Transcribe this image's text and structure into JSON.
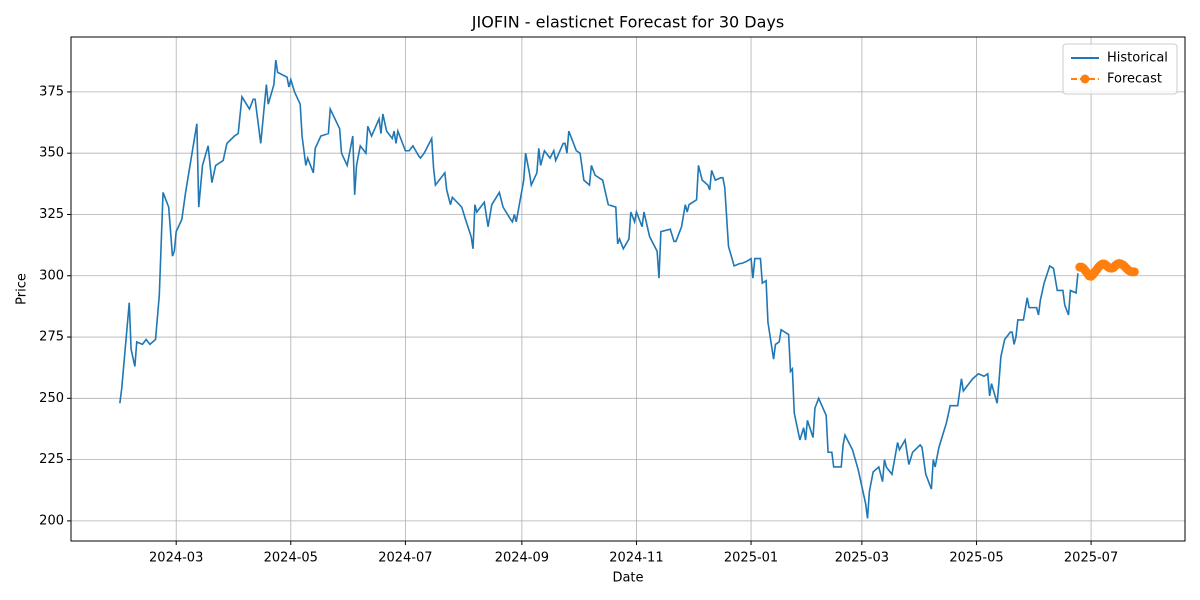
{
  "chart_data": {
    "type": "line",
    "title": "JIOFIN - elasticnet Forecast for 30 Days",
    "x_label": "Date",
    "y_label": "Price",
    "grid": true,
    "legend": "upper right",
    "xlim": [
      "2024-01-05",
      "2025-08-20"
    ],
    "xticks": [
      {
        "value": "2024-03-01",
        "label": "2024-03"
      },
      {
        "value": "2024-05-01",
        "label": "2024-05"
      },
      {
        "value": "2024-07-01",
        "label": "2024-07"
      },
      {
        "value": "2024-09-01",
        "label": "2024-09"
      },
      {
        "value": "2024-11-01",
        "label": "2024-11"
      },
      {
        "value": "2025-01-01",
        "label": "2025-01"
      },
      {
        "value": "2025-03-01",
        "label": "2025-03"
      },
      {
        "value": "2025-05-01",
        "label": "2025-05"
      },
      {
        "value": "2025-07-01",
        "label": "2025-07"
      }
    ],
    "ylim": [
      191.8,
      397.4
    ],
    "yticks": [
      200,
      225,
      250,
      275,
      300,
      325,
      350,
      375
    ],
    "series": [
      {
        "name": "Historical",
        "color": "#1f77b4",
        "style": "solid",
        "x": [
          "2024-01-31",
          "2024-02-01",
          "2024-02-05",
          "2024-02-06",
          "2024-02-08",
          "2024-02-09",
          "2024-02-12",
          "2024-02-14",
          "2024-02-16",
          "2024-02-19",
          "2024-02-21",
          "2024-02-23",
          "2024-02-26",
          "2024-02-28",
          "2024-02-29",
          "2024-03-01",
          "2024-03-04",
          "2024-03-06",
          "2024-03-12",
          "2024-03-13",
          "2024-03-15",
          "2024-03-18",
          "2024-03-20",
          "2024-03-22",
          "2024-03-26",
          "2024-03-28",
          "2024-04-01",
          "2024-04-03",
          "2024-04-05",
          "2024-04-09",
          "2024-04-11",
          "2024-04-12",
          "2024-04-15",
          "2024-04-18",
          "2024-04-19",
          "2024-04-22",
          "2024-04-23",
          "2024-04-24",
          "2024-04-29",
          "2024-04-30",
          "2024-05-01",
          "2024-05-03",
          "2024-05-06",
          "2024-05-07",
          "2024-05-09",
          "2024-05-10",
          "2024-05-13",
          "2024-05-14",
          "2024-05-17",
          "2024-05-21",
          "2024-05-22",
          "2024-05-27",
          "2024-05-28",
          "2024-05-31",
          "2024-06-03",
          "2024-06-04",
          "2024-06-05",
          "2024-06-07",
          "2024-06-10",
          "2024-06-11",
          "2024-06-13",
          "2024-06-17",
          "2024-06-18",
          "2024-06-19",
          "2024-06-21",
          "2024-06-24",
          "2024-06-25",
          "2024-06-26",
          "2024-06-27",
          "2024-07-01",
          "2024-07-03",
          "2024-07-05",
          "2024-07-08",
          "2024-07-09",
          "2024-07-11",
          "2024-07-15",
          "2024-07-16",
          "2024-07-17",
          "2024-07-19",
          "2024-07-22",
          "2024-07-23",
          "2024-07-25",
          "2024-07-26",
          "2024-07-31",
          "2024-08-02",
          "2024-08-05",
          "2024-08-06",
          "2024-08-07",
          "2024-08-08",
          "2024-08-12",
          "2024-08-14",
          "2024-08-16",
          "2024-08-20",
          "2024-08-22",
          "2024-08-26",
          "2024-08-27",
          "2024-08-28",
          "2024-08-29",
          "2024-09-02",
          "2024-09-03",
          "2024-09-05",
          "2024-09-06",
          "2024-09-09",
          "2024-09-10",
          "2024-09-11",
          "2024-09-13",
          "2024-09-16",
          "2024-09-18",
          "2024-09-19",
          "2024-09-23",
          "2024-09-24",
          "2024-09-25",
          "2024-09-26",
          "2024-09-30",
          "2024-10-02",
          "2024-10-04",
          "2024-10-07",
          "2024-10-08",
          "2024-10-10",
          "2024-10-14",
          "2024-10-17",
          "2024-10-21",
          "2024-10-22",
          "2024-10-23",
          "2024-10-25",
          "2024-10-28",
          "2024-10-29",
          "2024-10-31",
          "2024-11-01",
          "2024-11-04",
          "2024-11-05",
          "2024-11-08",
          "2024-11-12",
          "2024-11-13",
          "2024-11-14",
          "2024-11-19",
          "2024-11-21",
          "2024-11-22",
          "2024-11-25",
          "2024-11-27",
          "2024-11-28",
          "2024-11-29",
          "2024-12-03",
          "2024-12-04",
          "2024-12-06",
          "2024-12-09",
          "2024-12-10",
          "2024-12-11",
          "2024-12-13",
          "2024-12-16",
          "2024-12-17",
          "2024-12-18",
          "2024-12-20",
          "2024-12-23",
          "2024-12-26",
          "2024-12-27",
          "2024-12-30",
          "2025-01-01",
          "2025-01-02",
          "2025-01-03",
          "2025-01-06",
          "2025-01-07",
          "2025-01-09",
          "2025-01-10",
          "2025-01-13",
          "2025-01-14",
          "2025-01-16",
          "2025-01-17",
          "2025-01-21",
          "2025-01-22",
          "2025-01-23",
          "2025-01-24",
          "2025-01-27",
          "2025-01-29",
          "2025-01-30",
          "2025-01-31",
          "2025-02-03",
          "2025-02-04",
          "2025-02-06",
          "2025-02-10",
          "2025-02-11",
          "2025-02-13",
          "2025-02-14",
          "2025-02-18",
          "2025-02-19",
          "2025-02-20",
          "2025-02-24",
          "2025-02-27",
          "2025-03-03",
          "2025-03-04",
          "2025-03-05",
          "2025-03-07",
          "2025-03-10",
          "2025-03-12",
          "2025-03-13",
          "2025-03-14",
          "2025-03-17",
          "2025-03-20",
          "2025-03-21",
          "2025-03-24",
          "2025-03-26",
          "2025-03-28",
          "2025-04-01",
          "2025-04-02",
          "2025-04-04",
          "2025-04-07",
          "2025-04-08",
          "2025-04-09",
          "2025-04-11",
          "2025-04-15",
          "2025-04-17",
          "2025-04-21",
          "2025-04-23",
          "2025-04-24",
          "2025-04-25",
          "2025-04-29",
          "2025-05-02",
          "2025-05-05",
          "2025-05-07",
          "2025-05-08",
          "2025-05-09",
          "2025-05-12",
          "2025-05-13",
          "2025-05-14",
          "2025-05-16",
          "2025-05-19",
          "2025-05-20",
          "2025-05-21",
          "2025-05-22",
          "2025-05-23",
          "2025-05-26",
          "2025-05-28",
          "2025-05-29",
          "2025-05-30",
          "2025-06-02",
          "2025-06-03",
          "2025-06-04",
          "2025-06-06",
          "2025-06-09",
          "2025-06-11",
          "2025-06-13",
          "2025-06-16",
          "2025-06-17",
          "2025-06-19",
          "2025-06-20",
          "2025-06-23",
          "2025-06-24"
        ],
        "values": [
          248,
          254,
          289,
          270,
          263,
          273,
          272,
          274,
          272,
          274,
          292,
          334,
          328,
          308,
          310,
          318,
          323,
          334,
          362,
          328,
          345,
          353,
          338,
          345,
          347,
          354,
          357,
          358,
          373,
          368,
          372,
          372,
          354,
          378,
          370,
          378,
          388,
          383,
          381,
          377,
          380,
          375,
          370,
          357,
          345,
          348,
          342,
          352,
          357,
          358,
          368,
          360,
          350,
          345,
          357,
          333,
          345,
          353,
          350,
          361,
          357,
          364,
          358,
          366,
          359,
          356,
          359,
          354,
          359,
          351,
          351,
          353,
          349,
          348,
          350,
          356,
          344,
          337,
          339,
          342,
          335,
          329,
          332,
          328,
          323,
          316,
          311,
          329,
          326,
          330,
          320,
          329,
          334,
          328,
          323,
          322,
          325,
          322,
          339,
          350,
          342,
          337,
          342,
          352,
          345,
          351,
          348,
          351,
          347,
          354,
          354,
          350,
          359,
          351,
          350,
          339,
          337,
          345,
          341,
          339,
          329,
          328,
          313,
          315,
          311,
          315,
          326,
          322,
          326,
          320,
          326,
          316,
          310,
          299,
          318,
          319,
          314,
          314,
          320,
          329,
          326,
          329,
          331,
          345,
          339,
          337,
          335,
          343,
          339,
          340,
          340,
          336,
          312,
          304,
          305,
          305,
          306,
          307,
          299,
          307,
          307,
          297,
          298,
          281,
          266,
          272,
          273,
          278,
          276,
          261,
          262,
          244,
          233,
          238,
          233,
          241,
          234,
          246,
          250,
          243,
          228,
          228,
          222,
          222,
          231,
          235,
          229,
          221,
          207,
          201,
          212,
          220,
          222,
          216,
          225,
          222,
          219,
          232,
          229,
          233,
          223,
          228,
          231,
          230,
          219,
          213,
          225,
          222,
          230,
          240,
          247,
          247,
          258,
          253,
          254,
          258,
          260,
          259,
          260,
          251,
          256,
          248,
          257,
          267,
          274,
          277,
          277,
          272,
          275,
          282,
          282,
          291,
          287,
          287,
          287,
          284,
          290,
          297,
          304,
          303,
          294,
          294,
          288,
          284,
          294,
          293,
          301
        ]
      },
      {
        "name": "Forecast",
        "color": "#ff7f0e",
        "style": "dashed-markers",
        "x": [
          "2025-06-25",
          "2025-06-26",
          "2025-06-27",
          "2025-06-28",
          "2025-06-29",
          "2025-06-30",
          "2025-07-01",
          "2025-07-02",
          "2025-07-03",
          "2025-07-04",
          "2025-07-05",
          "2025-07-06",
          "2025-07-07",
          "2025-07-08",
          "2025-07-09",
          "2025-07-10",
          "2025-07-11",
          "2025-07-12",
          "2025-07-13",
          "2025-07-14",
          "2025-07-15",
          "2025-07-16",
          "2025-07-17",
          "2025-07-18",
          "2025-07-19",
          "2025-07-20",
          "2025-07-21",
          "2025-07-22",
          "2025-07-23",
          "2025-07-24"
        ],
        "values": [
          303.5,
          303.5,
          303,
          302,
          301,
          300,
          299.8,
          300.5,
          301.5,
          302.5,
          303.5,
          304.3,
          304.8,
          304.8,
          304.3,
          303.6,
          303.2,
          303.1,
          303.4,
          304.2,
          304.8,
          305,
          304.8,
          304.4,
          303.7,
          302.9,
          302.2,
          301.8,
          301.6,
          301.6
        ]
      }
    ]
  }
}
